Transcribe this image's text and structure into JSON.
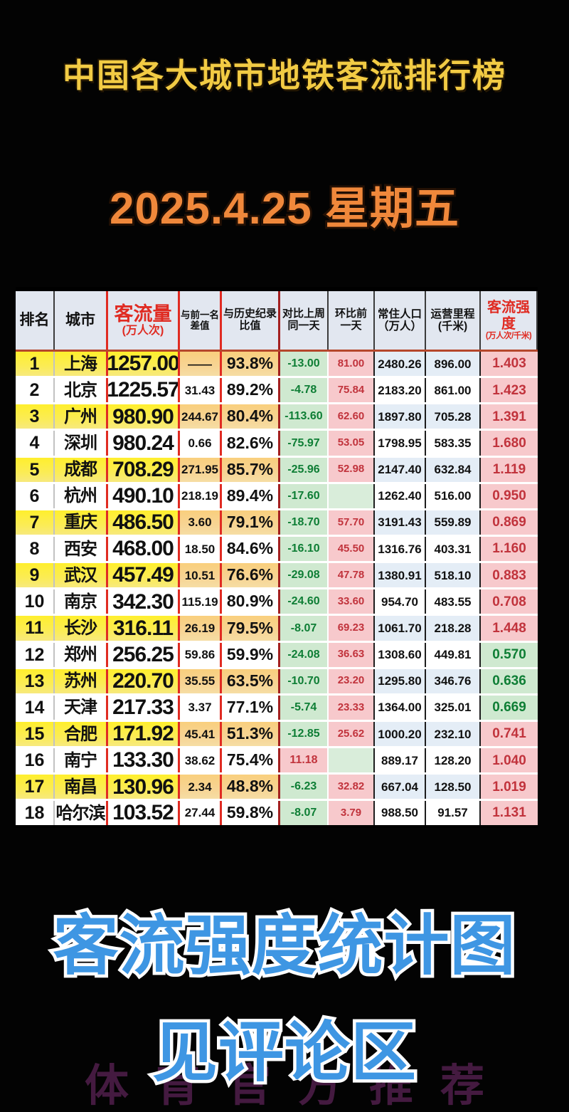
{
  "title": "中国各大城市地铁客流排行榜",
  "date": "2025.4.25  星期五",
  "footer": {
    "line1": "客流强度统计图",
    "line2": "见评论区",
    "watermark": "体育官方推荐"
  },
  "colors": {
    "title_yellow": "#f2cb44",
    "date_orange": "#f0883b",
    "footer_blue": "#3e96e3",
    "watermark_purple": "#7a2d72",
    "table_red": "#e02b22",
    "header_bg": "#e2e7f0",
    "green_bg": "#cfe9d0",
    "blank_green": "#d9edda",
    "pink_bg": "#f7c9cc",
    "blue_bg": "#e4edf6",
    "green_text": "#0e7e35",
    "red_text": "#c1333c"
  },
  "chart_data": {
    "type": "table",
    "title": "中国各大城市地铁客流排行榜",
    "date": "2025.4.25 星期五",
    "columns": [
      {
        "l1": "排名",
        "l2": "",
        "red": false
      },
      {
        "l1": "城市",
        "l2": "",
        "red": false
      },
      {
        "l1": "客流量",
        "l2": "(万人次)",
        "red": true
      },
      {
        "l1": "与前一名",
        "l2": "差值",
        "red": false
      },
      {
        "l1": "与历史纪录",
        "l2": "比值",
        "red": false
      },
      {
        "l1": "对比上周",
        "l2": "同一天",
        "red": false
      },
      {
        "l1": "环比前",
        "l2": "一天",
        "red": false
      },
      {
        "l1": "常住人口",
        "l2": "（万人）",
        "red": false
      },
      {
        "l1": "运营里程",
        "l2": "(千米)",
        "red": false
      },
      {
        "l1": "客流强度",
        "l2": "(万人次/千米)",
        "red": true
      }
    ],
    "rows": [
      {
        "rank": "1",
        "city": "上海",
        "volume": "1257.00",
        "gap": "——",
        "ratio": "93.8%",
        "wow": "-13.00",
        "wow_positive": false,
        "dod": "81.00",
        "pop": "2480.26",
        "mileage": "896.00",
        "intensity": "1.403",
        "intensity_green": false
      },
      {
        "rank": "2",
        "city": "北京",
        "volume": "1225.57",
        "gap": "31.43",
        "ratio": "89.2%",
        "wow": "-4.78",
        "wow_positive": false,
        "dod": "75.84",
        "pop": "2183.20",
        "mileage": "861.00",
        "intensity": "1.423",
        "intensity_green": false
      },
      {
        "rank": "3",
        "city": "广州",
        "volume": "980.90",
        "gap": "244.67",
        "ratio": "80.4%",
        "wow": "-113.60",
        "wow_positive": false,
        "dod": "62.60",
        "pop": "1897.80",
        "mileage": "705.28",
        "intensity": "1.391",
        "intensity_green": false
      },
      {
        "rank": "4",
        "city": "深圳",
        "volume": "980.24",
        "gap": "0.66",
        "ratio": "82.6%",
        "wow": "-75.97",
        "wow_positive": false,
        "dod": "53.05",
        "pop": "1798.95",
        "mileage": "583.35",
        "intensity": "1.680",
        "intensity_green": false
      },
      {
        "rank": "5",
        "city": "成都",
        "volume": "708.29",
        "gap": "271.95",
        "ratio": "85.7%",
        "wow": "-25.96",
        "wow_positive": false,
        "dod": "52.98",
        "pop": "2147.40",
        "mileage": "632.84",
        "intensity": "1.119",
        "intensity_green": false
      },
      {
        "rank": "6",
        "city": "杭州",
        "volume": "490.10",
        "gap": "218.19",
        "ratio": "89.4%",
        "wow": "-17.60",
        "wow_positive": false,
        "dod": "",
        "pop": "1262.40",
        "mileage": "516.00",
        "intensity": "0.950",
        "intensity_green": false
      },
      {
        "rank": "7",
        "city": "重庆",
        "volume": "486.50",
        "gap": "3.60",
        "ratio": "79.1%",
        "wow": "-18.70",
        "wow_positive": false,
        "dod": "57.70",
        "pop": "3191.43",
        "mileage": "559.89",
        "intensity": "0.869",
        "intensity_green": false
      },
      {
        "rank": "8",
        "city": "西安",
        "volume": "468.00",
        "gap": "18.50",
        "ratio": "84.6%",
        "wow": "-16.10",
        "wow_positive": false,
        "dod": "45.50",
        "pop": "1316.76",
        "mileage": "403.31",
        "intensity": "1.160",
        "intensity_green": false
      },
      {
        "rank": "9",
        "city": "武汉",
        "volume": "457.49",
        "gap": "10.51",
        "ratio": "76.6%",
        "wow": "-29.08",
        "wow_positive": false,
        "dod": "47.78",
        "pop": "1380.91",
        "mileage": "518.10",
        "intensity": "0.883",
        "intensity_green": false
      },
      {
        "rank": "10",
        "city": "南京",
        "volume": "342.30",
        "gap": "115.19",
        "ratio": "80.9%",
        "wow": "-24.60",
        "wow_positive": false,
        "dod": "33.60",
        "pop": "954.70",
        "mileage": "483.55",
        "intensity": "0.708",
        "intensity_green": false
      },
      {
        "rank": "11",
        "city": "长沙",
        "volume": "316.11",
        "gap": "26.19",
        "ratio": "79.5%",
        "wow": "-8.07",
        "wow_positive": false,
        "dod": "69.23",
        "pop": "1061.70",
        "mileage": "218.28",
        "intensity": "1.448",
        "intensity_green": false
      },
      {
        "rank": "12",
        "city": "郑州",
        "volume": "256.25",
        "gap": "59.86",
        "ratio": "59.9%",
        "wow": "-24.08",
        "wow_positive": false,
        "dod": "36.63",
        "pop": "1308.60",
        "mileage": "449.81",
        "intensity": "0.570",
        "intensity_green": true
      },
      {
        "rank": "13",
        "city": "苏州",
        "volume": "220.70",
        "gap": "35.55",
        "ratio": "63.5%",
        "wow": "-10.70",
        "wow_positive": false,
        "dod": "23.20",
        "pop": "1295.80",
        "mileage": "346.76",
        "intensity": "0.636",
        "intensity_green": true
      },
      {
        "rank": "14",
        "city": "天津",
        "volume": "217.33",
        "gap": "3.37",
        "ratio": "77.1%",
        "wow": "-5.74",
        "wow_positive": false,
        "dod": "23.33",
        "pop": "1364.00",
        "mileage": "325.01",
        "intensity": "0.669",
        "intensity_green": true
      },
      {
        "rank": "15",
        "city": "合肥",
        "volume": "171.92",
        "gap": "45.41",
        "ratio": "51.3%",
        "wow": "-12.85",
        "wow_positive": false,
        "dod": "25.62",
        "pop": "1000.20",
        "mileage": "232.10",
        "intensity": "0.741",
        "intensity_green": false
      },
      {
        "rank": "16",
        "city": "南宁",
        "volume": "133.30",
        "gap": "38.62",
        "ratio": "75.4%",
        "wow": "11.18",
        "wow_positive": true,
        "dod": "",
        "pop": "889.17",
        "mileage": "128.20",
        "intensity": "1.040",
        "intensity_green": false
      },
      {
        "rank": "17",
        "city": "南昌",
        "volume": "130.96",
        "gap": "2.34",
        "ratio": "48.8%",
        "wow": "-6.23",
        "wow_positive": false,
        "dod": "32.82",
        "pop": "667.04",
        "mileage": "128.50",
        "intensity": "1.019",
        "intensity_green": false
      },
      {
        "rank": "18",
        "city": "哈尔滨",
        "volume": "103.52",
        "gap": "27.44",
        "ratio": "59.8%",
        "wow": "-8.07",
        "wow_positive": false,
        "dod": "3.79",
        "pop": "988.50",
        "mileage": "91.57",
        "intensity": "1.131",
        "intensity_green": false
      }
    ]
  }
}
